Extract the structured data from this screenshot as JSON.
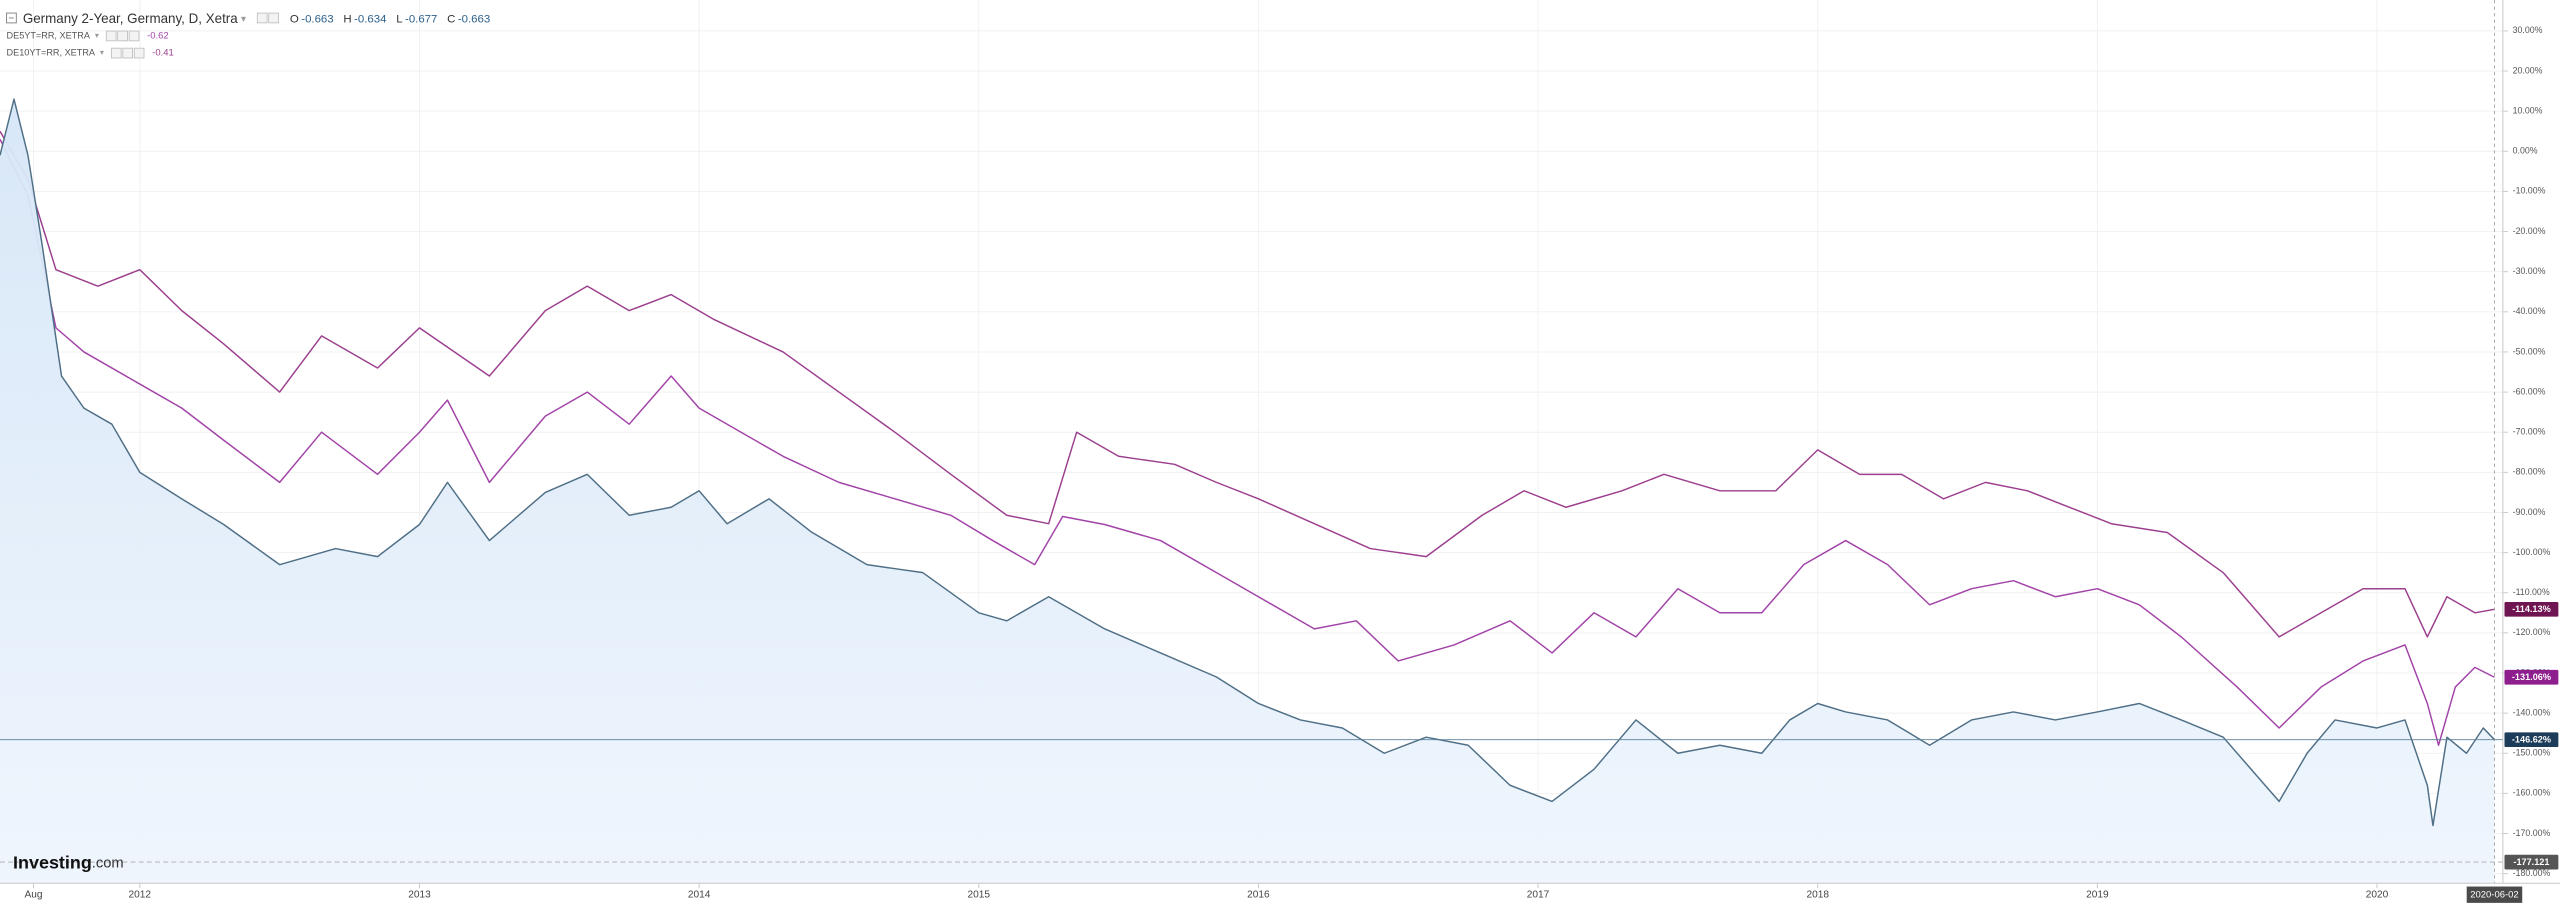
{
  "chart_data": {
    "type": "line",
    "title": "Germany 2-Year, Germany, D, Xetra",
    "ohlc": [
      {
        "label": "O",
        "value": -0.663
      },
      {
        "label": "H",
        "value": -0.634
      },
      {
        "label": "L",
        "value": -0.677
      },
      {
        "label": "C",
        "value": -0.663
      }
    ],
    "logo": [
      "Investing",
      ".com"
    ],
    "crosshair": {
      "value": 2020.42,
      "label": "2020-06-02"
    },
    "xlim": [
      2011.5,
      2020.45
    ],
    "xticks": [
      {
        "value": 2011.62,
        "label": "Aug"
      },
      {
        "value": 2012,
        "label": "2012"
      },
      {
        "value": 2013,
        "label": "2013"
      },
      {
        "value": 2014,
        "label": "2014"
      },
      {
        "value": 2015,
        "label": "2015"
      },
      {
        "value": 2016,
        "label": "2016"
      },
      {
        "value": 2017,
        "label": "2017"
      },
      {
        "value": 2018,
        "label": "2018"
      },
      {
        "value": 2019,
        "label": "2019"
      },
      {
        "value": 2020,
        "label": "2020"
      }
    ],
    "ylim": [
      -182.4,
      37.7
    ],
    "yticks": [
      {
        "value": 30,
        "label": "30.00%"
      },
      {
        "value": 20,
        "label": "20.00%"
      },
      {
        "value": 10,
        "label": "10.00%"
      },
      {
        "value": 0,
        "label": "0.00%"
      },
      {
        "value": -10,
        "label": "-10.00%"
      },
      {
        "value": -20,
        "label": "-20.00%"
      },
      {
        "value": -30,
        "label": "-30.00%"
      },
      {
        "value": -40,
        "label": "-40.00%"
      },
      {
        "value": -50,
        "label": "-50.00%"
      },
      {
        "value": -60,
        "label": "-60.00%"
      },
      {
        "value": -70,
        "label": "-70.00%"
      },
      {
        "value": -80,
        "label": "-80.00%"
      },
      {
        "value": -90,
        "label": "-90.00%"
      },
      {
        "value": -100,
        "label": "-100.00%"
      },
      {
        "value": -110,
        "label": "-110.00%"
      },
      {
        "value": -120,
        "label": "-120.00%"
      },
      {
        "value": -130,
        "label": "-130.00%"
      },
      {
        "value": -140,
        "label": "-140.00%"
      },
      {
        "value": -150,
        "label": "-150.00%"
      },
      {
        "value": -160,
        "label": "-160.00%"
      },
      {
        "value": -170,
        "label": "-170.00%"
      },
      {
        "value": -180,
        "label": "-180.00%"
      }
    ],
    "grid": true,
    "series": [
      {
        "name": "Germany 2-Year, Germany, D, Xetra",
        "color": "#4f6f86",
        "fill": "#dce9f8",
        "x": [
          2011.5,
          2011.55,
          2011.6,
          2011.65,
          2011.72,
          2011.8,
          2011.9,
          2012.0,
          2012.15,
          2012.3,
          2012.5,
          2012.7,
          2012.85,
          2013.0,
          2013.1,
          2013.25,
          2013.45,
          2013.6,
          2013.75,
          2013.9,
          2014.0,
          2014.1,
          2014.25,
          2014.4,
          2014.6,
          2014.8,
          2015.0,
          2015.1,
          2015.25,
          2015.45,
          2015.65,
          2015.85,
          2016.0,
          2016.15,
          2016.3,
          2016.45,
          2016.6,
          2016.75,
          2016.9,
          2017.05,
          2017.2,
          2017.35,
          2017.5,
          2017.65,
          2017.8,
          2017.9,
          2018.0,
          2018.1,
          2018.25,
          2018.4,
          2018.55,
          2018.7,
          2018.85,
          2019.0,
          2019.15,
          2019.3,
          2019.45,
          2019.6,
          2019.65,
          2019.75,
          2019.85,
          2020.0,
          2020.1,
          2020.18,
          2020.2,
          2020.25,
          2020.32,
          2020.38,
          2020.42
        ],
        "values": [
          -1,
          13,
          -1,
          -23,
          -56,
          -64,
          -68,
          -80,
          -86.6,
          -93,
          -103,
          -99,
          -101,
          -93,
          -82.5,
          -97,
          -85,
          -80.5,
          -90.7,
          -88.7,
          -84.6,
          -92.8,
          -86.6,
          -94.8,
          -103,
          -105,
          -115,
          -117,
          -111,
          -119,
          -125,
          -131,
          -137.6,
          -141.7,
          -143.7,
          -150,
          -146,
          -148,
          -158,
          -162,
          -154,
          -141.7,
          -150,
          -148,
          -150,
          -141.7,
          -137.6,
          -139.7,
          -141.7,
          -148,
          -141.7,
          -139.7,
          -141.7,
          -139.7,
          -137.6,
          -141.7,
          -146,
          -158,
          -162,
          -150,
          -141.7,
          -143.7,
          -141.7,
          -158,
          -168,
          -146,
          -150,
          -143.7,
          -146.62
        ]
      },
      {
        "name": "DE5YT=RR, XETRA",
        "color": "#a243a8",
        "last": -0.62,
        "x": [
          2011.5,
          2011.6,
          2011.7,
          2011.8,
          2012.0,
          2012.15,
          2012.3,
          2012.5,
          2012.65,
          2012.85,
          2013.0,
          2013.1,
          2013.25,
          2013.45,
          2013.6,
          2013.75,
          2013.9,
          2014.0,
          2014.15,
          2014.3,
          2014.5,
          2014.7,
          2014.9,
          2015.05,
          2015.2,
          2015.3,
          2015.45,
          2015.65,
          2015.85,
          2016.0,
          2016.2,
          2016.35,
          2016.5,
          2016.7,
          2016.9,
          2017.05,
          2017.2,
          2017.35,
          2017.5,
          2017.65,
          2017.8,
          2017.95,
          2018.1,
          2018.25,
          2018.4,
          2018.55,
          2018.7,
          2018.85,
          2019.0,
          2019.15,
          2019.3,
          2019.5,
          2019.65,
          2019.8,
          2019.95,
          2020.1,
          2020.18,
          2020.22,
          2020.28,
          2020.35,
          2020.42
        ],
        "values": [
          3,
          -11,
          -44,
          -50,
          -58,
          -64,
          -72,
          -82.5,
          -70,
          -80.5,
          -70,
          -62,
          -82.5,
          -66,
          -60,
          -68,
          -56,
          -64,
          -70,
          -76,
          -82.5,
          -86.6,
          -90.7,
          -97,
          -103,
          -91,
          -93,
          -97,
          -105,
          -111,
          -119,
          -117,
          -127,
          -123,
          -117,
          -125,
          -115,
          -121,
          -109,
          -115,
          -115,
          -103,
          -97,
          -103,
          -113,
          -109,
          -107,
          -111,
          -109,
          -113,
          -121,
          -133.5,
          -143.7,
          -133.5,
          -127,
          -123,
          -137.6,
          -148,
          -133.5,
          -128.6,
          -131.06
        ]
      },
      {
        "name": "DE10YT=RR, XETRA",
        "color": "#9c3f8e",
        "last": -0.41,
        "x": [
          2011.5,
          2011.6,
          2011.7,
          2011.85,
          2012.0,
          2012.15,
          2012.3,
          2012.5,
          2012.65,
          2012.85,
          2013.0,
          2013.25,
          2013.45,
          2013.6,
          2013.75,
          2013.9,
          2014.05,
          2014.3,
          2014.5,
          2014.7,
          2014.9,
          2015.1,
          2015.25,
          2015.35,
          2015.5,
          2015.7,
          2015.85,
          2016.0,
          2016.2,
          2016.4,
          2016.6,
          2016.8,
          2016.95,
          2017.1,
          2017.3,
          2017.45,
          2017.65,
          2017.85,
          2018.0,
          2018.15,
          2018.3,
          2018.45,
          2018.6,
          2018.75,
          2018.9,
          2019.05,
          2019.25,
          2019.45,
          2019.65,
          2019.8,
          2019.95,
          2020.1,
          2020.18,
          2020.25,
          2020.35,
          2020.42
        ],
        "values": [
          5,
          -7,
          -29.5,
          -33.6,
          -29.5,
          -39.7,
          -48,
          -60,
          -46,
          -54,
          -44,
          -56,
          -39.7,
          -33.6,
          -39.7,
          -35.7,
          -41.8,
          -50,
          -60,
          -70,
          -80.5,
          -90.7,
          -92.8,
          -70,
          -76,
          -78,
          -82.5,
          -86.6,
          -92.8,
          -99,
          -101,
          -90.7,
          -84.6,
          -88.7,
          -84.6,
          -80.5,
          -84.6,
          -84.6,
          -74.4,
          -80.5,
          -80.5,
          -86.6,
          -82.5,
          -84.6,
          -88.7,
          -92.8,
          -95,
          -105,
          -121,
          -115,
          -109,
          -109,
          -121,
          -111,
          -115,
          -114.13
        ]
      }
    ],
    "tags": [
      {
        "value": -114.13,
        "label": "-114.13%",
        "color": "#6f1552"
      },
      {
        "value": -131.06,
        "label": "-131.06%",
        "color": "#8e1d8e"
      },
      {
        "value": -146.62,
        "label": "-146.62%",
        "color": "#1d3c5a"
      },
      {
        "value": -177.121,
        "label": "-177.121",
        "color": "#555555"
      }
    ]
  }
}
